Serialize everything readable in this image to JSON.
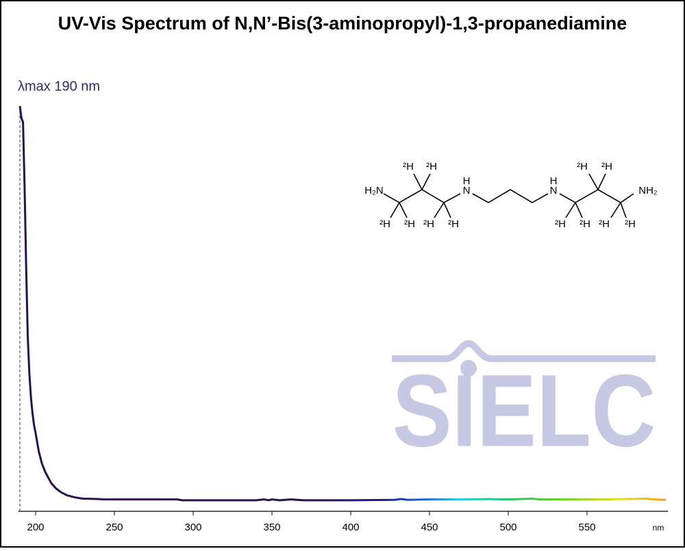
{
  "chart_data": {
    "type": "line",
    "title": "UV-Vis Spectrum of N,N’-Bis(3-aminopropyl)-1,3-propanediamine",
    "annotation": "λmax  190 nm",
    "lambda_max": 190,
    "x_unit": "nm",
    "x": [
      190,
      191,
      192,
      193,
      194,
      195,
      196,
      197,
      198,
      199,
      200,
      202,
      204,
      206,
      208,
      210,
      213,
      216,
      220,
      225,
      230,
      240,
      243,
      290,
      293,
      340,
      345,
      348,
      350,
      355,
      362,
      370,
      400,
      428,
      432,
      436,
      450,
      470,
      487,
      500,
      515,
      520,
      560,
      588,
      592,
      600
    ],
    "series": [
      {
        "values": [
          1.0,
          0.97,
          0.96,
          0.8,
          0.6,
          0.43,
          0.34,
          0.28,
          0.24,
          0.21,
          0.19,
          0.145,
          0.115,
          0.095,
          0.08,
          0.066,
          0.053,
          0.044,
          0.036,
          0.031,
          0.028,
          0.027,
          0.026,
          0.026,
          0.024,
          0.024,
          0.026,
          0.024,
          0.026,
          0.024,
          0.026,
          0.024,
          0.024,
          0.025,
          0.027,
          0.025,
          0.026,
          0.026,
          0.027,
          0.026,
          0.028,
          0.026,
          0.026,
          0.028,
          0.026,
          0.025
        ]
      }
    ],
    "gradient": [
      {
        "x": 190,
        "color": "#2b0f4e"
      },
      {
        "x": 380,
        "color": "#2b0f4e"
      },
      {
        "x": 420,
        "color": "#1a1aa0"
      },
      {
        "x": 450,
        "color": "#1f6fdd"
      },
      {
        "x": 470,
        "color": "#22d3e0"
      },
      {
        "x": 500,
        "color": "#22c870"
      },
      {
        "x": 530,
        "color": "#5cd020"
      },
      {
        "x": 570,
        "color": "#e0e020"
      },
      {
        "x": 600,
        "color": "#f5a010"
      }
    ],
    "xlim": [
      189,
      601
    ],
    "xticks": [
      200,
      250,
      300,
      350,
      400,
      450,
      500,
      550
    ],
    "ylim": [
      0,
      1
    ]
  },
  "structure": {
    "atoms": [
      "H₂N",
      "H",
      "N",
      "H",
      "N",
      "NH₂"
    ],
    "deuterium_labels": [
      "²H",
      "²H",
      "²H",
      "²H",
      "²H",
      "²H",
      "²H",
      "²H",
      "²H",
      "²H",
      "²H",
      "²H"
    ]
  },
  "watermark": "SIELC"
}
